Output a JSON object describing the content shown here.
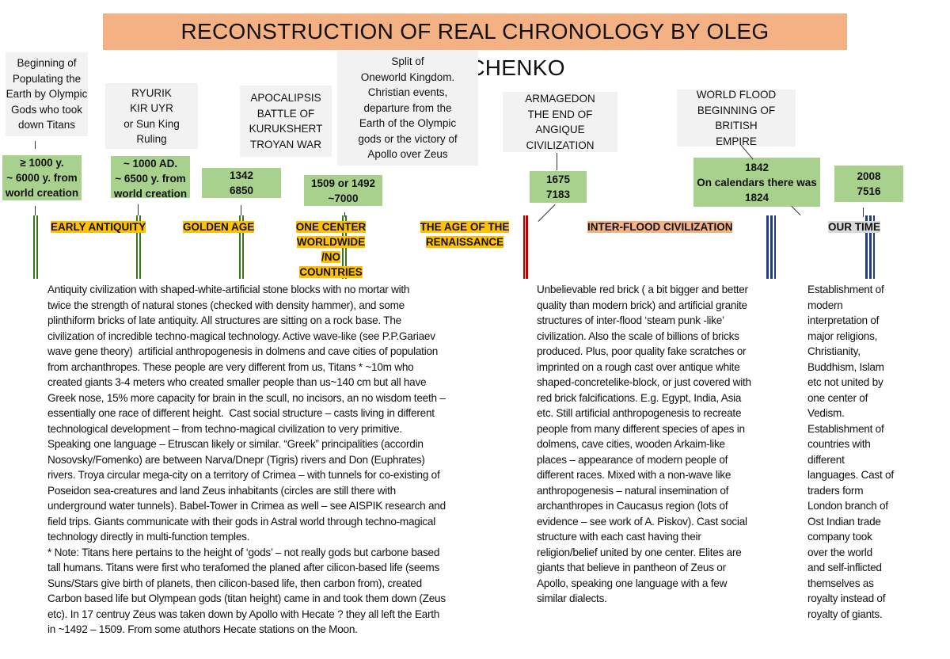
{
  "title": "RECONSTRUCTION OF REAL CHRONOLOGY BY OLEG PAVLYUCHENKO",
  "colors": {
    "title_bg": "#f4b183",
    "event_bg": "#f2f2f2",
    "date_bg": "#a9d18e",
    "era_bg": "#ffc000",
    "interflood_bg": "#f4b183",
    "our_time_bg": "#d9d9d9",
    "green_line": "#38761d",
    "red_line": "#c00000",
    "blue_line": "#1f3c88"
  },
  "events": [
    "Beginning of\nPopulating the\nEarth by Olympic\nGods who took\ndown Titans",
    "RYURIK\nKIR UYR\nor Sun King\nRuling",
    "APOCALIPSIS\nBATTLE OF\nKURUKSHERT\nTROYAN WAR",
    "Split of\nOneworld Kingdom.\nChristian events,\ndeparture from the\nEarth of the Olympic\ngods or the victory of\nApollo over Zeus",
    "ARMAGEDON\nTHE END OF ANGIQUE\nCIVILIZATION",
    "WORLD FLOOD\nBEGINNING OF BRITISH\nEMPIRE"
  ],
  "dates": [
    "≥ 1000 y.\n~ 6000 y. from\nworld creation",
    "~ 1000 AD.\n~ 6500 y. from\nworld creation",
    "1342\n6850",
    "1509 or 1492\n~7000",
    "1675\n7183",
    "1842\nOn calendars there was\n1824",
    "2008\n7516"
  ],
  "eras": [
    "EARLY ANTIQUITY",
    "GOLDEN AGE",
    "ONE CENTER\nWORLDWIDE /NO\nCOUNTRIES",
    "THE AGE OF THE\nRENAISSANCE",
    "INTER-FLOOD CIVILIZATION",
    "OUR TIME"
  ],
  "descriptions": {
    "antiquity": "Antiquity civilization with shaped-white-artificial stone blocks with no mortar with\ntwice the strength of natural stones (checked with density hammer), and some\nplinthiform bricks of late antiquity. All structures are sitting on a rock base. The\ncivilization of incredible techno-magical technology. Active wave-like (see P.P.Gariaev\nwave gene theory)  artificial anthropogenesis in dolmens and cave cities of population\nfrom archanthropes. These people are very different from us, Titans * ~10m who\ncreated giants 3-4 meters who created smaller people than us~140 cm but all have\nGreek nose, 15% more capacity for brain in the scull, no incisors, an no wisdom teeth –\nessentially one race of different height.  Cast social structure – casts living in different\ntechnological development – from techno-magical civilization to very primitive.\nSpeaking one language – Etruscan likely or similar. “Greek” principalities (accordin\nNosovsky/Fomenko) are between Narva/Dnepr (Tigris) rivers and Don (Euphrates)\nrivers. Troya circular mega-city on a territory of Crimea – with tunnels for co-existing of\nPoseidon sea-creatures and land Zeus inhabitants (circles are still there with\nunderground water tunnels). Babel-Tower in Crimea as well – see AISPIK research and\nfield trips. Giants communicate with their gods in Astral world through techno-magical\ntechnology directly in multi-function temples.\n* Note: Titans here pertains to the height of ‘gods’ – not really gods but carbone based\ntall humans. Titans were first who terafomed the planed after cilicon-based life (seems\nSuns/Stars give birth of planets, then cilicon-based life, then carbon from), created\nCarbon based life but Olympean gods (titan height) came in and took them down (Zeus\netc). In 17 centruy Zeus was taken down by Apollo with Hecate ? they all left the Earth\nin ~1492 – 1509. From some atuthors Hecate stations on the Moon.",
    "interflood": "Unbelievable red brick ( a bit bigger and better\nquality than modern brick) and artificial granite\nstructures of inter-flood ‘steam punk -like’\ncivilization. Also the scale of billions of bricks\nproduced. Plus, poor quality fake scratches or\nimprinted on a rough cast over antique white\nshaped-concretelike-block, or just covered with\nred brick falcifications. E.g. Egypt, India, Asia\netc. Still artificial anthropogenesis to recreate\npeople from many different species of apes in\ndolmens, cave cities, wooden Arkaim-like\nplaces – appearance of modern people of\ndifferent races. Mixed with a non-wave like\nanthropogenesis – natural insemination of\narchanthropes in Caucasus region (lots of\nevidence – see work of A. Piskov). Cast social\nstructure with each cast having their\nreligion/belief united by one center. Elites are\ngiants that believe in pantheon of Zeus or\nApollo, speaking one language with a few\nsimilar dialects.",
    "our_time": "Establishment of\nmodern\ninterpretation of\nmajor religions,\nChristianity,\nBuddhism, Islam\netc not united by\none center of\nVedism.\nEstablishment of\ncountries with\ndifferent\nlanguages. Cast of\ntraders form\nLondon branch of\nOst Indian trade\ncompany took\nover the world\nand self-inflicted\nthemselves as\nroyalty instead of\nroyalty of giants."
  }
}
